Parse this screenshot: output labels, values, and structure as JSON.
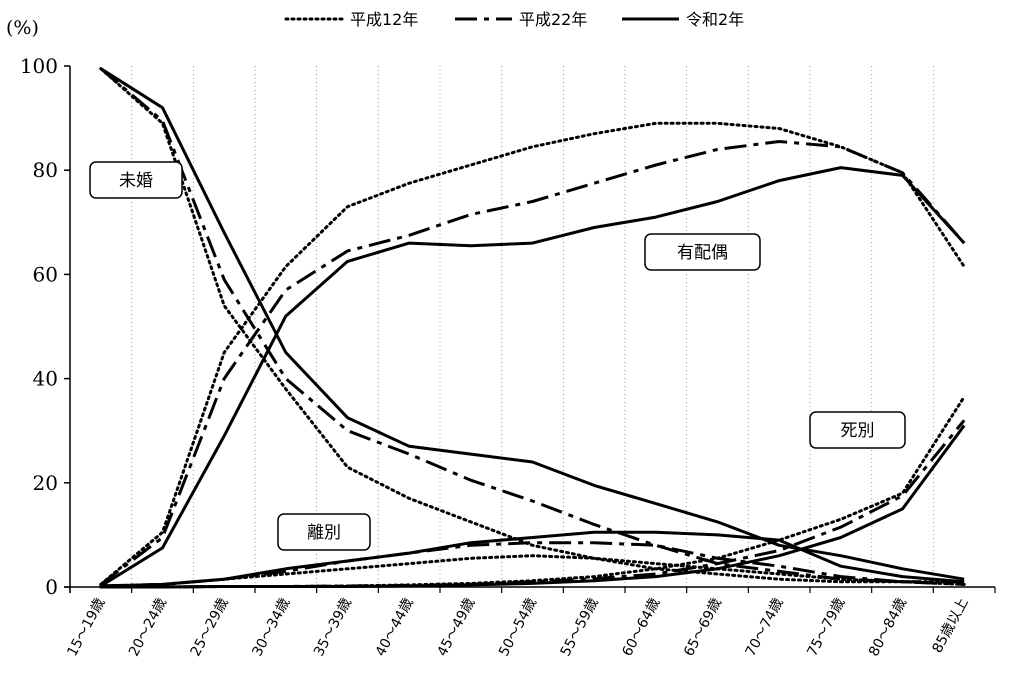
{
  "chart_data": {
    "type": "line",
    "unit_label": "(%)",
    "ylim": [
      0,
      100
    ],
    "yticks": [
      "0",
      "20",
      "40",
      "60",
      "80",
      "100"
    ],
    "categories": [
      "15～19歳",
      "20～24歳",
      "25～29歳",
      "30～34歳",
      "35～39歳",
      "40～44歳",
      "45～49歳",
      "50～54歳",
      "55～59歳",
      "60～64歳",
      "65～69歳",
      "70～74歳",
      "75～79歳",
      "80～84歳",
      "85歳以上"
    ],
    "grid": "vertical-dotted",
    "legend_position": "top",
    "legend": [
      {
        "name": "平成12年",
        "style": "dotted"
      },
      {
        "name": "平成22年",
        "style": "dashdot"
      },
      {
        "name": "令和2年",
        "style": "solid"
      }
    ],
    "groups": [
      {
        "label": "未婚",
        "series": {
          "平成12年": [
            99.5,
            89.0,
            54.0,
            38.0,
            23.0,
            17.0,
            12.5,
            8.0,
            5.5,
            3.5,
            2.5,
            1.5,
            1.0,
            1.0,
            1.0
          ],
          "平成22年": [
            99.5,
            89.5,
            59.0,
            40.0,
            30.0,
            25.5,
            20.5,
            16.5,
            12.0,
            8.0,
            4.5,
            3.0,
            1.5,
            1.0,
            1.0
          ],
          "令和2年": [
            99.5,
            92.0,
            68.0,
            45.0,
            32.5,
            27.0,
            25.5,
            24.0,
            19.5,
            16.0,
            12.5,
            8.0,
            6.0,
            3.5,
            1.5
          ]
        }
      },
      {
        "label": "有配偶",
        "series": {
          "平成12年": [
            0.5,
            10.5,
            45.0,
            61.5,
            73.0,
            77.5,
            81.0,
            84.5,
            87.0,
            89.0,
            89.0,
            88.0,
            84.5,
            79.5,
            61.5
          ],
          "平成22年": [
            0.5,
            9.5,
            40.0,
            57.0,
            64.5,
            67.5,
            71.5,
            74.0,
            77.5,
            81.0,
            84.0,
            85.5,
            84.5,
            79.5,
            66.0
          ],
          "令和2年": [
            0.2,
            7.5,
            29.0,
            52.0,
            62.5,
            66.0,
            65.5,
            66.0,
            69.0,
            71.0,
            74.0,
            78.0,
            80.5,
            79.0,
            66.0
          ]
        }
      },
      {
        "label": "離別",
        "series": {
          "平成12年": [
            0.2,
            0.5,
            1.5,
            2.5,
            3.5,
            4.5,
            5.5,
            6.0,
            5.5,
            4.5,
            3.5,
            2.5,
            1.5,
            1.0,
            0.5
          ],
          "平成22年": [
            0.2,
            0.5,
            1.5,
            3.0,
            5.0,
            6.5,
            8.0,
            8.5,
            8.5,
            8.0,
            5.5,
            4.0,
            2.0,
            1.0,
            0.5
          ],
          "令和2年": [
            0.2,
            0.5,
            1.5,
            3.5,
            5.0,
            6.5,
            8.5,
            9.5,
            10.5,
            10.5,
            10.0,
            9.0,
            4.0,
            2.0,
            1.0
          ]
        }
      },
      {
        "label": "死別",
        "series": {
          "平成12年": [
            0.0,
            0.0,
            0.1,
            0.1,
            0.2,
            0.4,
            0.7,
            1.2,
            2.0,
            3.5,
            5.5,
            9.0,
            13.0,
            18.0,
            36.5
          ],
          "平成22年": [
            0.0,
            0.0,
            0.1,
            0.1,
            0.2,
            0.3,
            0.5,
            1.0,
            1.6,
            2.5,
            4.5,
            7.0,
            11.5,
            17.5,
            32.0
          ],
          "令和2年": [
            0.0,
            0.0,
            0.1,
            0.1,
            0.1,
            0.2,
            0.4,
            0.7,
            1.2,
            2.0,
            3.5,
            6.0,
            9.5,
            15.0,
            31.0
          ]
        }
      }
    ]
  }
}
